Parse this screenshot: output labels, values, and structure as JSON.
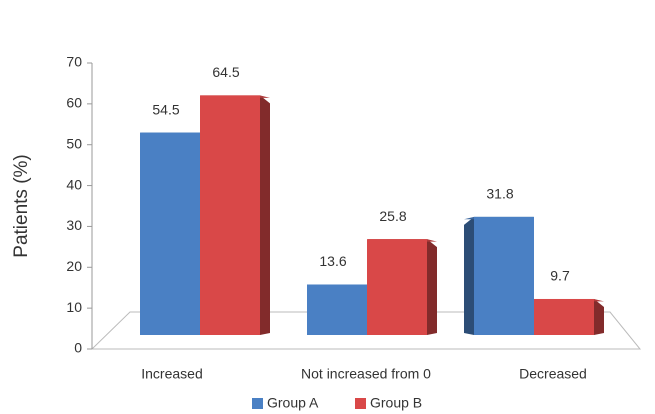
{
  "chart_data": {
    "type": "bar3d",
    "y_label": "Patients (%)",
    "categories": [
      "Increased",
      "Not increased from 0",
      "Decreased"
    ],
    "series": [
      {
        "name": "Group A",
        "color": "#4a80c4",
        "values": [
          54.5,
          13.6,
          31.8
        ]
      },
      {
        "name": "Group B",
        "color": "#d94848",
        "values": [
          64.5,
          25.8,
          9.7
        ]
      }
    ],
    "ylim": [
      0,
      70
    ],
    "yticks": [
      0,
      10,
      20,
      30,
      40,
      50,
      60,
      70
    ]
  }
}
